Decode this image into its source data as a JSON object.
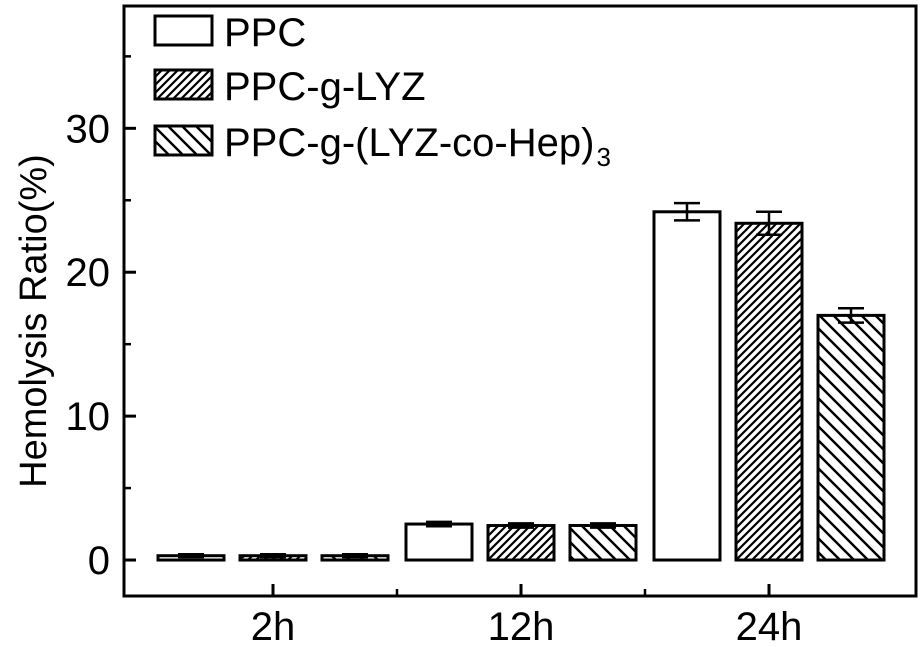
{
  "chart_data": {
    "type": "bar",
    "ylabel": "Hemolysis Ratio(%)",
    "xlabel": "",
    "categories": [
      "2h",
      "12h",
      "24h"
    ],
    "ylim": [
      -2.5,
      38.5
    ],
    "yticks": [
      0,
      10,
      20,
      30
    ],
    "legend_position": "top-left",
    "grid": false,
    "series": [
      {
        "name": "PPC",
        "fill": "open",
        "values": [
          0.3,
          2.5,
          24.2
        ],
        "errors": [
          0.1,
          0.15,
          0.6
        ]
      },
      {
        "name": "PPC-g-LYZ",
        "fill": "dense-hatch",
        "values": [
          0.3,
          2.4,
          23.4
        ],
        "errors": [
          0.1,
          0.15,
          0.8
        ]
      },
      {
        "name": "PPC-g-(LYZ-co-Hep)",
        "subscript": "3",
        "fill": "sparse-hatch",
        "values": [
          0.3,
          2.4,
          17.0
        ],
        "errors": [
          0.1,
          0.15,
          0.5
        ]
      }
    ]
  }
}
